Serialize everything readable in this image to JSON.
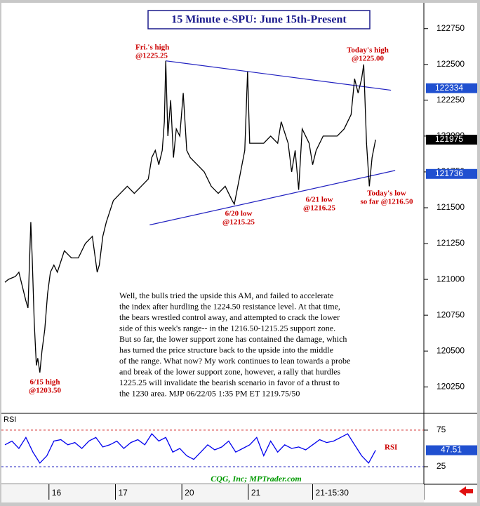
{
  "chart_data": [
    {
      "type": "line",
      "title": "15 Minute e-SPU: June 15th-Present",
      "color": "#000000",
      "x": [
        5,
        10,
        15,
        20,
        25,
        30,
        35,
        38,
        40,
        42,
        44,
        47,
        50,
        52,
        55,
        58,
        62,
        66,
        70,
        75,
        80,
        90,
        100,
        110,
        120,
        130,
        137,
        140,
        145,
        150,
        160,
        170,
        180,
        190,
        200,
        210,
        215,
        220,
        225,
        230,
        233,
        235,
        238,
        242,
        246,
        250,
        255,
        260,
        265,
        270,
        280,
        290,
        300,
        310,
        320,
        330,
        333,
        340,
        348,
        352,
        355,
        365,
        375,
        385,
        395,
        400,
        410,
        415,
        420,
        425,
        430,
        440,
        445,
        450,
        460,
        470,
        480,
        490,
        500,
        505,
        510,
        515,
        518,
        522,
        526,
        530,
        535
      ],
      "values": [
        120980,
        121000,
        121010,
        121020,
        121050,
        120950,
        120850,
        120800,
        121100,
        121400,
        121150,
        120700,
        120400,
        120450,
        120350,
        120500,
        120650,
        120900,
        121050,
        121100,
        121050,
        121200,
        121150,
        121150,
        121250,
        121300,
        121050,
        121100,
        121300,
        121400,
        121550,
        121600,
        121650,
        121600,
        121650,
        121700,
        121850,
        121900,
        121800,
        121900,
        122100,
        122525,
        122000,
        122250,
        121850,
        122050,
        122000,
        122300,
        121900,
        121850,
        121800,
        121750,
        121650,
        121600,
        121650,
        121550,
        121525,
        121700,
        121900,
        122450,
        121950,
        121950,
        121950,
        122000,
        121950,
        122100,
        121950,
        121750,
        121900,
        121625,
        122050,
        121950,
        121800,
        121900,
        122000,
        122000,
        122000,
        122050,
        122150,
        122400,
        122300,
        122400,
        122500,
        121950,
        121650,
        121850,
        121975
      ],
      "xlim": [
        0,
        604
      ],
      "ylim": [
        120070,
        122925
      ],
      "yticks": [
        120250,
        120500,
        120750,
        121000,
        121250,
        121500,
        121750,
        122000,
        122250,
        122500,
        122750
      ],
      "trendlines": [
        {
          "color": "#2020c0",
          "x": [
            235,
            557
          ],
          "values": [
            122525,
            122320
          ]
        },
        {
          "color": "#2020c0",
          "x": [
            212,
            563
          ],
          "values": [
            121380,
            121760
          ]
        }
      ],
      "price_tags": [
        {
          "value": 122334,
          "color": "#2050d0"
        },
        {
          "value": 121975,
          "color": "#000000"
        },
        {
          "value": 121736,
          "color": "#2050d0"
        }
      ],
      "annotations": [
        [
          "Fri.'s high",
          "@1225.25"
        ],
        [
          "Today's high",
          "@1225.00"
        ],
        [
          "6/20 low",
          "@1215.25"
        ],
        [
          "6/21 low",
          "@1216.25"
        ],
        [
          "Today's low",
          "so far @1216.50"
        ],
        [
          "6/15 high",
          "@1203.50"
        ]
      ],
      "commentary": [
        "Well, the bulls tried the upside this AM, and failed to accelerate",
        "the index after hurdling the 1224.50 resistance level. At that time,",
        "the bears wrestled control away, and attempted to crack the lower",
        "side of this week's range-- in the 1216.50-1215.25 support zone.",
        "But so far, the lower support zone has contained the damage, which",
        "has turned the price structure back to the upside into the middle",
        "of the range. What now?  My work continues to lean towards a probe",
        "and break of the lower support zone, however, a rally that hurdles",
        "1225.25 will invalidate the bearish scenario in favor of a thrust to",
        "the 1230 area.  MJP 06/22/05 1:35 PM ET 1219.75/50"
      ]
    },
    {
      "type": "line",
      "title": "RSI",
      "series_label": "RSI",
      "color": "#0000ee",
      "x": [
        5,
        15,
        25,
        35,
        45,
        55,
        65,
        75,
        85,
        95,
        105,
        115,
        125,
        135,
        145,
        155,
        165,
        175,
        185,
        195,
        205,
        215,
        225,
        235,
        245,
        255,
        265,
        275,
        285,
        295,
        305,
        315,
        325,
        335,
        345,
        355,
        365,
        375,
        385,
        395,
        405,
        415,
        425,
        435,
        445,
        455,
        465,
        475,
        485,
        495,
        505,
        515,
        525,
        535
      ],
      "values": [
        55,
        60,
        50,
        65,
        45,
        30,
        40,
        60,
        62,
        55,
        58,
        50,
        60,
        65,
        52,
        55,
        60,
        50,
        58,
        62,
        55,
        70,
        60,
        65,
        45,
        50,
        40,
        35,
        45,
        55,
        48,
        52,
        60,
        45,
        50,
        55,
        65,
        40,
        60,
        45,
        55,
        50,
        52,
        48,
        55,
        62,
        58,
        60,
        65,
        70,
        55,
        40,
        30,
        47.51
      ],
      "xlim": [
        0,
        604
      ],
      "ylim": [
        1,
        97
      ],
      "yticks": [
        25,
        75
      ],
      "tick_line_colors": [
        "#2020c0",
        "#d02020"
      ],
      "rsi_tag": {
        "value": 47.51,
        "color": "#2050d0"
      },
      "xticks": [
        {
          "value": 68,
          "label": "16"
        },
        {
          "value": 163,
          "label": "17"
        },
        {
          "value": 258,
          "label": "20"
        },
        {
          "value": 353,
          "label": "21"
        },
        {
          "value": 445,
          "label": "21-15:30"
        }
      ]
    }
  ],
  "footer": "CQG, Inc; MPTrader.com"
}
